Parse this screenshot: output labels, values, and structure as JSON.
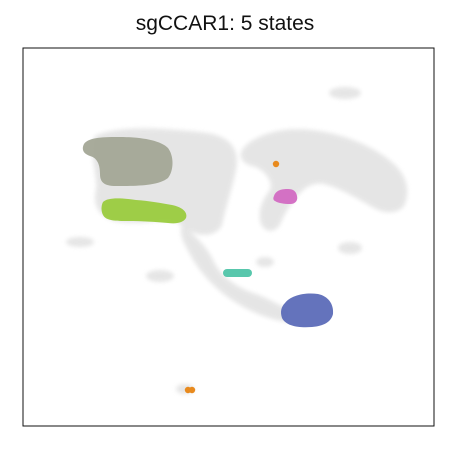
{
  "chart_data": {
    "type": "scatter",
    "title": "sgCCAR1: 5 states",
    "xlabel": "",
    "ylabel": "",
    "grid": false,
    "legend": "none",
    "axes_ticks": "none",
    "background_color": "#e3e3e3",
    "series": [
      {
        "color": "#a3a796",
        "shape": "blob"
      },
      {
        "color": "#9acb3e",
        "shape": "blob"
      },
      {
        "color": "#d26ac2",
        "shape": "blob"
      },
      {
        "color": "#4fc4a8",
        "shape": "blob"
      },
      {
        "color": "#5c6bb8",
        "shape": "blob"
      },
      {
        "color": "#e88a1e",
        "shape": "points"
      }
    ]
  }
}
